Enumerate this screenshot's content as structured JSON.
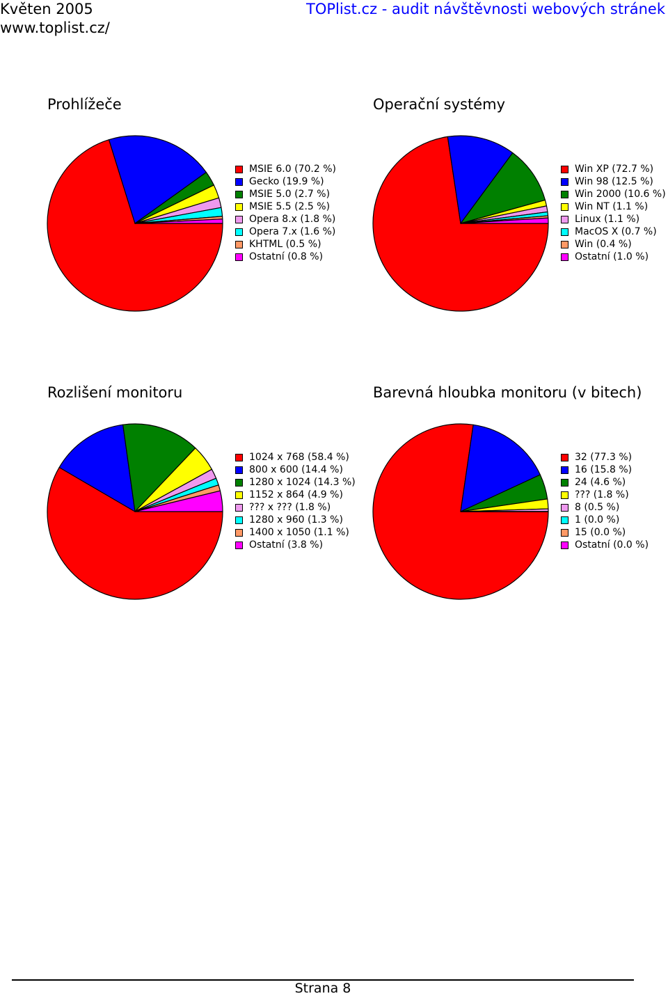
{
  "header": {
    "month": "Květen 2005",
    "url": "www.toplist.cz/",
    "site_title": "TOPlist.cz - audit návštěvnosti webových stránek"
  },
  "footer": {
    "page_label": "Strana 8"
  },
  "chart_data": [
    {
      "type": "pie",
      "title": "Prohlížeče",
      "labels": [
        "MSIE 6.0 (70.2 %)",
        "Gecko (19.9 %)",
        "MSIE 5.0 (2.7 %)",
        "MSIE 5.5 (2.5 %)",
        "Opera 8.x (1.8 %)",
        "Opera 7.x (1.6 %)",
        "KHTML (0.5 %)",
        "Ostatní (0.8 %)"
      ],
      "values": [
        70.2,
        19.9,
        2.7,
        2.5,
        1.8,
        1.6,
        0.5,
        0.8
      ],
      "colors": [
        "#ff0000",
        "#0000ff",
        "#008000",
        "#ffff00",
        "#ee99ee",
        "#00ffff",
        "#ff9966",
        "#ff00ff"
      ]
    },
    {
      "type": "pie",
      "title": "Operační systémy",
      "labels": [
        "Win XP (72.7 %)",
        "Win 98 (12.5 %)",
        "Win 2000 (10.6 %)",
        "Win NT (1.1 %)",
        "Linux (1.1 %)",
        "MacOS X (0.7 %)",
        "Win (0.4 %)",
        "Ostatní (1.0 %)"
      ],
      "values": [
        72.7,
        12.5,
        10.6,
        1.1,
        1.1,
        0.7,
        0.4,
        1.0
      ],
      "colors": [
        "#ff0000",
        "#0000ff",
        "#008000",
        "#ffff00",
        "#ee99ee",
        "#00ffff",
        "#ff9966",
        "#ff00ff"
      ]
    },
    {
      "type": "pie",
      "title": "Rozlišení monitoru",
      "labels": [
        "1024 x 768 (58.4 %)",
        "800 x 600 (14.4 %)",
        "1280 x 1024 (14.3 %)",
        "1152 x 864 (4.9 %)",
        "??? x ??? (1.8 %)",
        "1280 x 960 (1.3 %)",
        "1400 x 1050 (1.1 %)",
        "Ostatní (3.8 %)"
      ],
      "values": [
        58.4,
        14.4,
        14.3,
        4.9,
        1.8,
        1.3,
        1.1,
        3.8
      ],
      "colors": [
        "#ff0000",
        "#0000ff",
        "#008000",
        "#ffff00",
        "#ee99ee",
        "#00ffff",
        "#ff9966",
        "#ff00ff"
      ]
    },
    {
      "type": "pie",
      "title": "Barevná hloubka monitoru (v bitech)",
      "labels": [
        "32 (77.3 %)",
        "16 (15.8 %)",
        "24 (4.6 %)",
        "??? (1.8 %)",
        "8 (0.5 %)",
        "1 (0.0 %)",
        "15 (0.0 %)",
        "Ostatní (0.0 %)"
      ],
      "values": [
        77.3,
        15.8,
        4.6,
        1.8,
        0.5,
        0.0,
        0.0,
        0.0
      ],
      "colors": [
        "#ff0000",
        "#0000ff",
        "#008000",
        "#ffff00",
        "#ee99ee",
        "#00ffff",
        "#ff9966",
        "#ff00ff"
      ]
    }
  ]
}
